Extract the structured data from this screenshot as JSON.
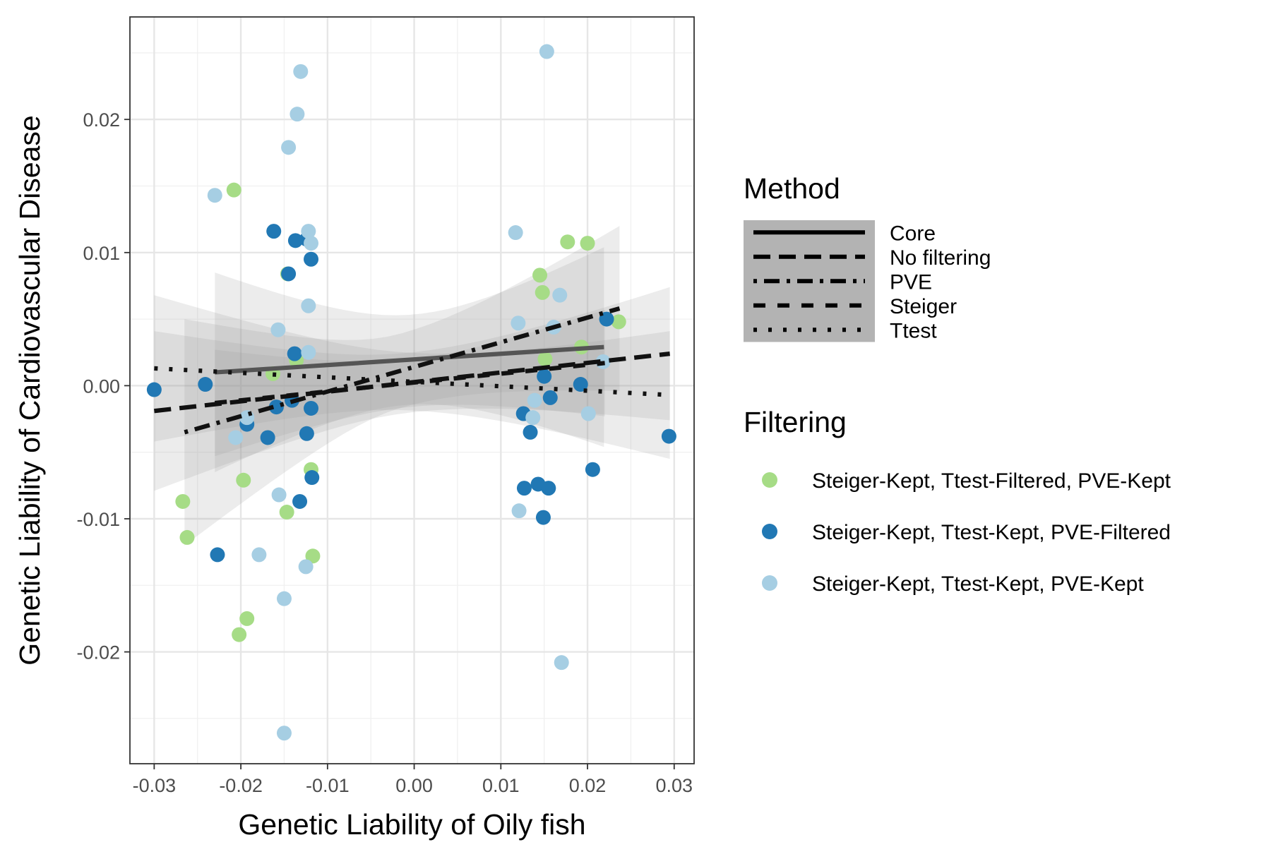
{
  "chart_data": {
    "type": "scatter",
    "xlabel": "Genetic Liability of Oily fish",
    "ylabel": "Genetic Liability of Cardiovascular Disease",
    "xlim": [
      -0.0328,
      0.0323
    ],
    "ylim": [
      -0.0284,
      0.0277
    ],
    "x_ticks": [
      -0.03,
      -0.02,
      -0.01,
      0.0,
      0.01,
      0.02,
      0.03
    ],
    "x_tick_labels": [
      "-0.03",
      "-0.02",
      "-0.01",
      "0.00",
      "0.01",
      "0.02",
      "0.03"
    ],
    "y_ticks": [
      -0.02,
      -0.01,
      0.0,
      0.01,
      0.02
    ],
    "y_tick_labels": [
      "-0.02",
      "-0.01",
      "0.00",
      "0.01",
      "0.02"
    ],
    "grid": true,
    "legend_position": "right",
    "method_legend": {
      "title": "Method",
      "entries": [
        {
          "name": "Core",
          "dash": "solid"
        },
        {
          "name": "No filtering",
          "dash": "longdash"
        },
        {
          "name": "PVE",
          "dash": "dotdash"
        },
        {
          "name": "Steiger",
          "dash": "dashed"
        },
        {
          "name": "Ttest",
          "dash": "dotted"
        }
      ]
    },
    "filtering_legend": {
      "title": "Filtering",
      "entries": [
        {
          "name": "Steiger-Kept, Ttest-Filtered, PVE-Kept",
          "color": "#a6dc86"
        },
        {
          "name": "Steiger-Kept, Ttest-Kept, PVE-Filtered",
          "color": "#2178b4"
        },
        {
          "name": "Steiger-Kept, Ttest-Kept, PVE-Kept",
          "color": "#a6cee3"
        }
      ]
    },
    "regression_lines": [
      {
        "method": "Core",
        "x": [
          -0.023,
          0.0219
        ],
        "y": [
          0.001,
          0.0029
        ],
        "color": "#555555",
        "ci_halfwidth": [
          0.0075,
          0.0075
        ]
      },
      {
        "method": "No filtering",
        "x": [
          -0.03,
          0.0295
        ],
        "y": [
          -0.0019,
          0.0024
        ],
        "color": "#111111",
        "ci_halfwidth": [
          0.006,
          0.005
        ]
      },
      {
        "method": "PVE",
        "x": [
          -0.0265,
          0.0237
        ],
        "y": [
          -0.0035,
          0.0058
        ],
        "color": "#111111",
        "ci_halfwidth": [
          0.0085,
          0.0062
        ]
      },
      {
        "method": "Steiger",
        "x": [
          -0.023,
          0.022
        ],
        "y": [
          -0.0013,
          0.0017
        ],
        "color": "#111111",
        "ci_halfwidth": [
          0.004,
          0.004
        ]
      },
      {
        "method": "Ttest",
        "x": [
          -0.03,
          0.0295
        ],
        "y": [
          0.0013,
          -0.0007
        ],
        "color": "#111111",
        "ci_halfwidth": [
          0.0055,
          0.0048
        ]
      }
    ],
    "series": [
      {
        "name": "Steiger-Kept, Ttest-Filtered, PVE-Kept",
        "color": "#a6dc86",
        "points": [
          [
            -0.0208,
            0.0147
          ],
          [
            -0.0267,
            -0.0087
          ],
          [
            -0.0262,
            -0.0114
          ],
          [
            -0.0197,
            -0.0071
          ],
          [
            -0.0193,
            -0.0175
          ],
          [
            -0.0202,
            -0.0187
          ],
          [
            -0.0147,
            -0.0095
          ],
          [
            -0.0119,
            -0.0063
          ],
          [
            -0.0117,
            -0.0128
          ],
          [
            -0.0146,
            0.0084
          ],
          [
            -0.0136,
            0.0019
          ],
          [
            -0.0163,
            0.0009
          ],
          [
            0.0145,
            0.0083
          ],
          [
            0.0148,
            0.007
          ],
          [
            0.0151,
            0.002
          ],
          [
            0.0177,
            0.0108
          ],
          [
            0.02,
            0.0107
          ],
          [
            0.0193,
            0.0029
          ],
          [
            0.0236,
            0.0048
          ]
        ]
      },
      {
        "name": "Steiger-Kept, Ttest-Kept, PVE-Filtered",
        "color": "#2178b4",
        "points": [
          [
            -0.03,
            -0.0003
          ],
          [
            -0.0241,
            0.0001
          ],
          [
            -0.0227,
            -0.0127
          ],
          [
            -0.0162,
            0.0116
          ],
          [
            -0.0137,
            0.0109
          ],
          [
            -0.0124,
            0.011
          ],
          [
            -0.0119,
            0.0095
          ],
          [
            -0.0145,
            0.0084
          ],
          [
            -0.0138,
            0.0024
          ],
          [
            -0.0141,
            -0.0011
          ],
          [
            -0.0119,
            -0.0017
          ],
          [
            -0.0124,
            -0.0036
          ],
          [
            -0.0159,
            -0.0016
          ],
          [
            -0.0169,
            -0.0039
          ],
          [
            -0.0193,
            -0.0029
          ],
          [
            -0.0132,
            -0.0087
          ],
          [
            -0.0118,
            -0.0069
          ],
          [
            0.0126,
            -0.0021
          ],
          [
            0.0134,
            -0.0035
          ],
          [
            0.0127,
            -0.0077
          ],
          [
            0.0143,
            -0.0074
          ],
          [
            0.0155,
            -0.0077
          ],
          [
            0.0149,
            -0.0099
          ],
          [
            0.015,
            0.0007
          ],
          [
            0.0157,
            -0.0009
          ],
          [
            0.0192,
            0.0001
          ],
          [
            0.0206,
            -0.0063
          ],
          [
            0.0222,
            0.005
          ],
          [
            0.0294,
            -0.0038
          ]
        ]
      },
      {
        "name": "Steiger-Kept, Ttest-Kept, PVE-Kept",
        "color": "#a6cee3",
        "points": [
          [
            -0.023,
            0.0143
          ],
          [
            -0.0135,
            0.0204
          ],
          [
            -0.0131,
            0.0236
          ],
          [
            -0.0145,
            0.0179
          ],
          [
            -0.0122,
            0.0116
          ],
          [
            -0.0119,
            0.0107
          ],
          [
            -0.0122,
            0.006
          ],
          [
            -0.0122,
            0.0025
          ],
          [
            -0.0157,
            0.0042
          ],
          [
            -0.0156,
            -0.0082
          ],
          [
            -0.0179,
            -0.0127
          ],
          [
            -0.0125,
            -0.0136
          ],
          [
            -0.015,
            -0.016
          ],
          [
            -0.015,
            -0.0261
          ],
          [
            -0.0193,
            -0.0024
          ],
          [
            -0.0206,
            -0.0039
          ],
          [
            0.0117,
            0.0115
          ],
          [
            0.012,
            0.0047
          ],
          [
            0.0153,
            0.0251
          ],
          [
            0.0168,
            0.0068
          ],
          [
            0.0161,
            0.0044
          ],
          [
            0.0139,
            -0.0011
          ],
          [
            0.0137,
            -0.0024
          ],
          [
            0.0121,
            -0.0094
          ],
          [
            0.0201,
            -0.0021
          ],
          [
            0.0218,
            0.0018
          ],
          [
            0.017,
            -0.0208
          ]
        ]
      }
    ]
  }
}
